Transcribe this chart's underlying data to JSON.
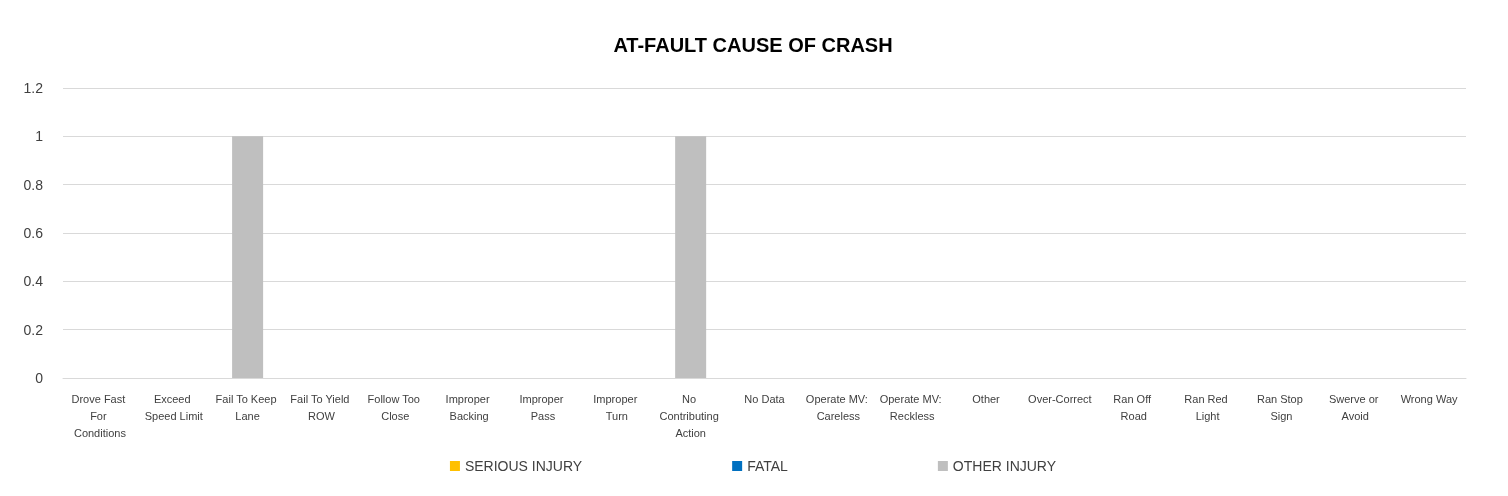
{
  "chart_data": {
    "type": "bar",
    "title": "AT-FAULT CAUSE OF CRASH",
    "categories": [
      "Drove Fast For Conditions",
      "Exceed Speed Limit",
      "Fail To Keep Lane",
      "Fail To Yield ROW",
      "Follow Too Close",
      "Improper Backing",
      "Improper Pass",
      "Improper Turn",
      "No Contributing Action",
      "No Data",
      "Operate MV: Careless",
      "Operate MV: Reckless",
      "Other",
      "Over-Correct",
      "Ran Off Road",
      "Ran Red Light",
      "Ran Stop Sign",
      "Swerve or Avoid",
      "Wrong Way"
    ],
    "series": [
      {
        "name": "SERIOUS INJURY",
        "color": "#ffc000",
        "values": [
          0,
          0,
          0,
          0,
          0,
          0,
          0,
          0,
          0,
          0,
          0,
          0,
          0,
          0,
          0,
          0,
          0,
          0,
          0
        ]
      },
      {
        "name": "FATAL",
        "color": "#0070c0",
        "values": [
          0,
          0,
          0,
          0,
          0,
          0,
          0,
          0,
          0,
          0,
          0,
          0,
          0,
          0,
          0,
          0,
          0,
          0,
          0
        ]
      },
      {
        "name": "OTHER INJURY",
        "color": "#bfbfbf",
        "values": [
          0,
          0,
          1,
          0,
          0,
          0,
          0,
          0,
          1,
          0,
          0,
          0,
          0,
          0,
          0,
          0,
          0,
          0,
          0
        ]
      }
    ],
    "stacked": true,
    "ylim": [
      0,
      1.2
    ],
    "yticks": [
      0,
      0.2,
      0.4,
      0.6,
      0.8,
      1,
      1.2
    ],
    "grid": "y",
    "legend": "bottom"
  }
}
